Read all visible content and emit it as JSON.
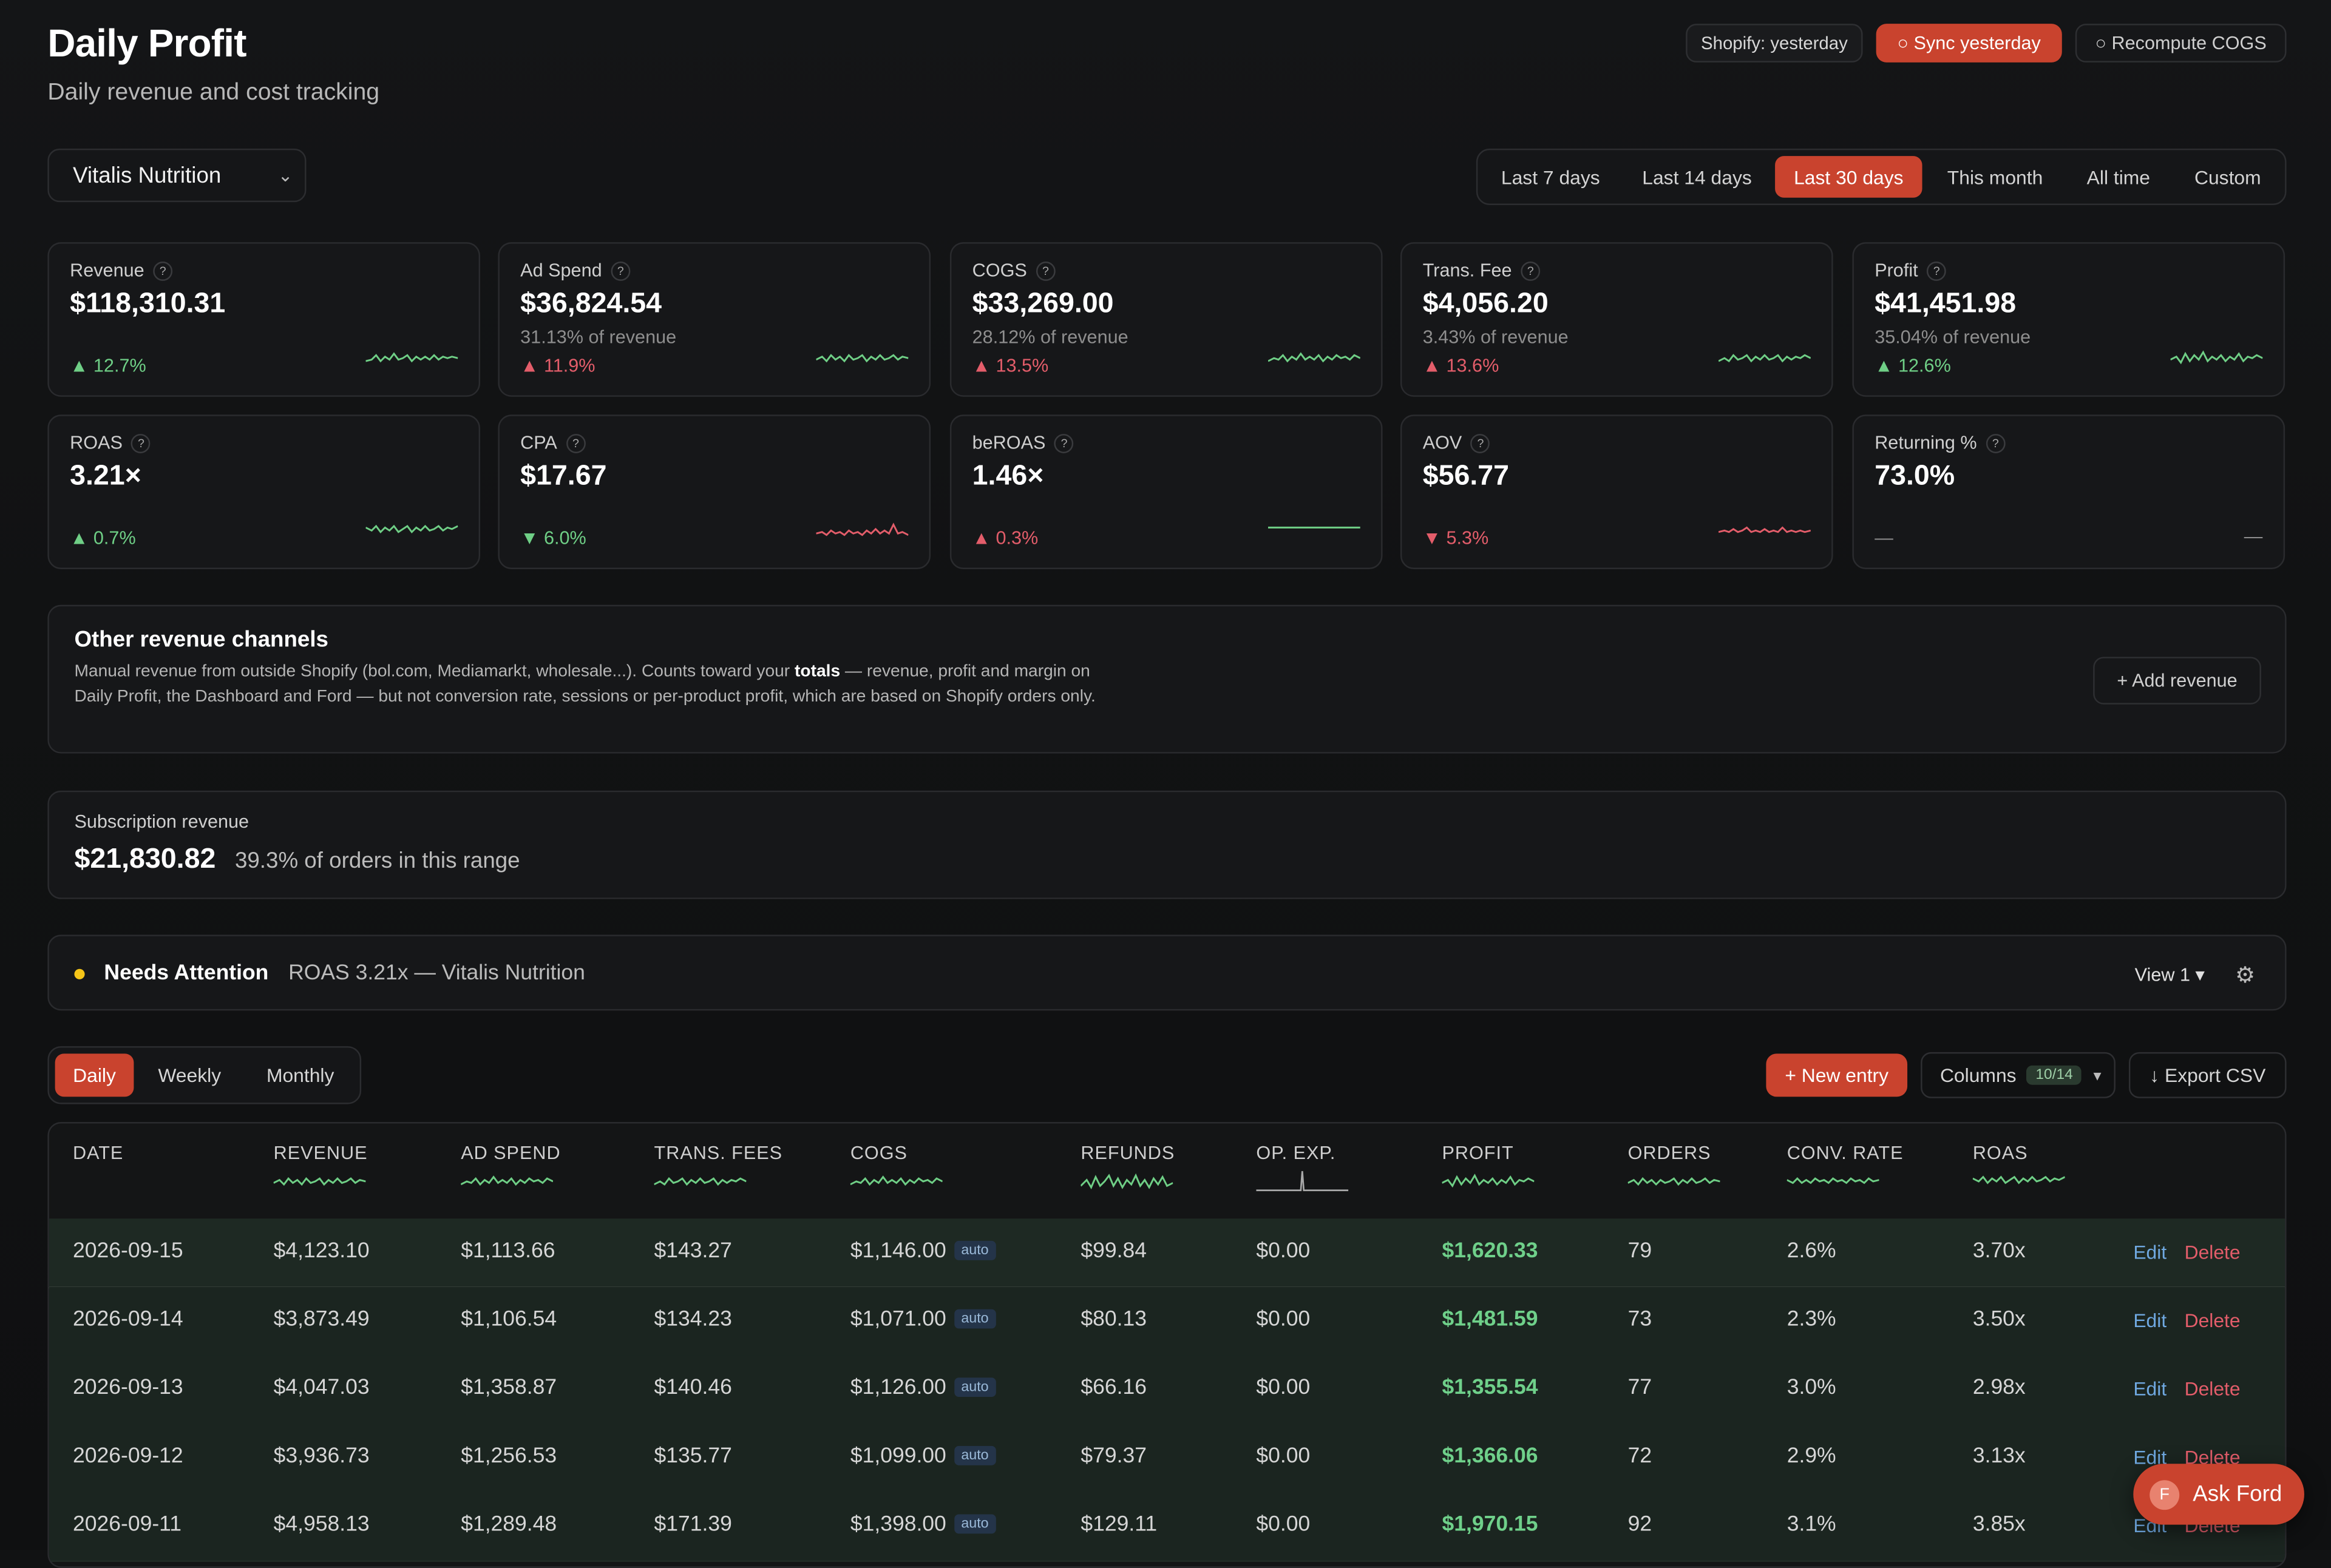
{
  "header": {
    "title": "Daily Profit",
    "subtitle": "Daily revenue and cost tracking",
    "shopify_status": "Shopify: yesterday",
    "sync_label": "○ Sync yesterday",
    "recompute_label": "○ Recompute COGS"
  },
  "store_select": {
    "value": "Vitalis Nutrition"
  },
  "date_ranges": [
    "Last 7 days",
    "Last 14 days",
    "Last 30 days",
    "This month",
    "All time",
    "Custom"
  ],
  "date_range_active": "Last 30 days",
  "kpis": [
    {
      "label": "Revenue",
      "value": "$118,310.31",
      "sub": "",
      "change": "▲ 12.7%",
      "tone": "good",
      "spark_color": "#6fcf86"
    },
    {
      "label": "Ad Spend",
      "value": "$36,824.54",
      "sub": "31.13% of revenue",
      "change": "▲ 11.9%",
      "tone": "bad",
      "spark_color": "#6fcf86"
    },
    {
      "label": "COGS",
      "value": "$33,269.00",
      "sub": "28.12% of revenue",
      "change": "▲ 13.5%",
      "tone": "bad",
      "spark_color": "#6fcf86"
    },
    {
      "label": "Trans. Fee",
      "value": "$4,056.20",
      "sub": "3.43% of revenue",
      "change": "▲ 13.6%",
      "tone": "bad",
      "spark_color": "#6fcf86"
    },
    {
      "label": "Profit",
      "value": "$41,451.98",
      "sub": "35.04% of revenue",
      "change": "▲ 12.6%",
      "tone": "good",
      "spark_color": "#6fcf86"
    },
    {
      "label": "ROAS",
      "value": "3.21×",
      "sub": "",
      "change": "▲ 0.7%",
      "tone": "good",
      "spark_color": "#6fcf86"
    },
    {
      "label": "CPA",
      "value": "$17.67",
      "sub": "",
      "change": "▼ 6.0%",
      "tone": "good",
      "spark_color": "#e35d6a"
    },
    {
      "label": "beROAS",
      "value": "1.46×",
      "sub": "",
      "change": "▲ 0.3%",
      "tone": "bad",
      "spark_color": "#6fcf86"
    },
    {
      "label": "AOV",
      "value": "$56.77",
      "sub": "",
      "change": "▼ 5.3%",
      "tone": "bad",
      "spark_color": "#e35d6a"
    },
    {
      "label": "Returning %",
      "value": "73.0%",
      "sub": "",
      "change": "—",
      "tone": "none",
      "spark_color": ""
    }
  ],
  "other_revenue": {
    "heading": "Other revenue channels",
    "text_before": "Manual revenue from outside Shopify (bol.com, Mediamarkt, wholesale...). Counts toward your ",
    "text_bold": "totals",
    "text_after": " — revenue, profit and margin on Daily Profit, the Dashboard and Ford — but not conversion rate, sessions or per-product profit, which are based on Shopify orders only.",
    "add_label": "+ Add revenue"
  },
  "subscription": {
    "label": "Subscription revenue",
    "value": "$21,830.82",
    "note": "39.3% of orders in this range"
  },
  "attention": {
    "heading": "Needs Attention",
    "detail": "ROAS 3.21x — Vitalis Nutrition",
    "view_label": "View 1 ▾"
  },
  "granularity": [
    "Daily",
    "Weekly",
    "Monthly"
  ],
  "granularity_active": "Daily",
  "toolbar": {
    "new_entry": "+ New entry",
    "columns_label": "Columns",
    "columns_badge": "10/14",
    "export_label": "↓ Export CSV"
  },
  "table": {
    "columns": [
      "DATE",
      "REVENUE",
      "AD SPEND",
      "TRANS. FEES",
      "COGS",
      "REFUNDS",
      "OP. EXP.",
      "PROFIT",
      "ORDERS",
      "CONV. RATE",
      "ROAS"
    ],
    "auto_tag": "auto",
    "edit_label": "Edit",
    "delete_label": "Delete",
    "rows": [
      [
        "2026-09-15",
        "$4,123.10",
        "$1,113.66",
        "$143.27",
        "$1,146.00",
        "$99.84",
        "$0.00",
        "$1,620.33",
        "79",
        "2.6%",
        "3.70x"
      ],
      [
        "2026-09-14",
        "$3,873.49",
        "$1,106.54",
        "$134.23",
        "$1,071.00",
        "$80.13",
        "$0.00",
        "$1,481.59",
        "73",
        "2.3%",
        "3.50x"
      ],
      [
        "2026-09-13",
        "$4,047.03",
        "$1,358.87",
        "$140.46",
        "$1,126.00",
        "$66.16",
        "$0.00",
        "$1,355.54",
        "77",
        "3.0%",
        "2.98x"
      ],
      [
        "2026-09-12",
        "$3,936.73",
        "$1,256.53",
        "$135.77",
        "$1,099.00",
        "$79.37",
        "$0.00",
        "$1,366.06",
        "72",
        "2.9%",
        "3.13x"
      ],
      [
        "2026-09-11",
        "$4,958.13",
        "$1,289.48",
        "$171.39",
        "$1,398.00",
        "$129.11",
        "$0.00",
        "$1,970.15",
        "92",
        "3.1%",
        "3.85x"
      ]
    ]
  },
  "ford": {
    "avatar": "F",
    "label": "Ask Ford"
  },
  "colors": {
    "accent": "#c9432e",
    "good": "#6fcf86",
    "bad": "#e35d6a",
    "attention": "#f5c518"
  }
}
